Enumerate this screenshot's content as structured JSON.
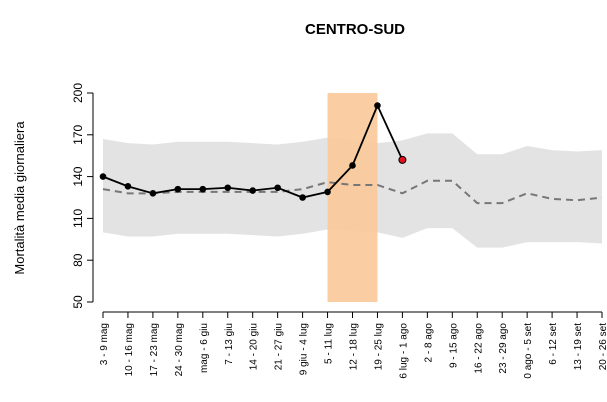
{
  "chart_data": {
    "type": "line",
    "title": "CENTRO-SUD",
    "y_label": "Mortalità media giornaliera",
    "categories": [
      "3 - 9 mag",
      "10 - 16 mag",
      "17 - 23 mag",
      "24 - 30 mag",
      "mag - 6 giu",
      "7 - 13 giu",
      "14 - 20 giu",
      "21 - 27 giu",
      "9 giu - 4 lug",
      "5 - 11 lug",
      "12 - 18 lug",
      "19 - 25 lug",
      "6 lug - 1 ago",
      "2 - 8 ago",
      "9 - 15 ago",
      "16 - 22 ago",
      "23 - 29 ago",
      "0 ago - 5 set",
      "6 - 12 set",
      "13 - 19 set",
      "20 - 26 set"
    ],
    "band": {
      "color": "#e3e3e3",
      "upper": [
        167,
        164,
        163,
        165,
        165,
        165,
        164,
        163,
        165,
        168,
        166,
        164,
        166,
        171,
        171,
        156,
        156,
        162,
        159,
        158,
        159
      ],
      "lower": [
        100,
        97,
        97,
        99,
        99,
        99,
        98,
        97,
        99,
        102,
        101,
        100,
        96,
        103,
        103,
        89,
        89,
        93,
        93,
        93,
        92
      ]
    },
    "series": [
      {
        "color": "#777777",
        "dashed": true,
        "values": [
          131,
          128,
          128,
          129,
          129,
          129,
          129,
          129,
          131,
          136,
          134,
          134,
          128,
          137,
          137,
          121,
          121,
          128,
          124,
          123,
          125
        ]
      },
      {
        "color": "#000000",
        "dashed": false,
        "markers": true,
        "last_point_color": "#e0141e",
        "values": [
          140,
          133,
          128,
          131,
          131,
          132,
          130,
          132,
          125,
          129,
          148,
          191,
          152,
          null,
          null,
          null,
          null,
          null,
          null,
          null,
          null
        ]
      }
    ],
    "highlight": {
      "from": "5 - 11 lug",
      "to": "19 - 25 lug",
      "color": "#f9c898"
    },
    "ylim": [
      50,
      200
    ],
    "yticks": [
      50,
      80,
      110,
      140,
      170,
      200
    ]
  }
}
